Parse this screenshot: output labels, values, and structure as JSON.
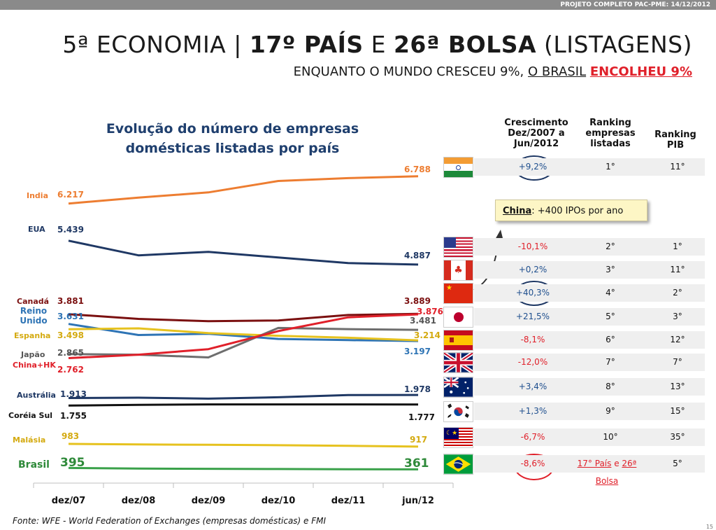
{
  "header": {
    "project": "PROJETO COMPLETO PAC-PME: 14/12/2012"
  },
  "title": {
    "part1": "5ª ECONOMIA | ",
    "part2": "17º PAÍS",
    "part3": " E ",
    "part4": "26ª BOLSA",
    "part5": " (LISTAGENS)"
  },
  "subtitle": {
    "part1": "ENQUANTO O MUNDO CRESCEU 9%, ",
    "part2": "O BRASIL",
    "part3": "ENCOLHEU 9%"
  },
  "chart_data": {
    "type": "line",
    "title": "Evolução do número de empresas domésticas listadas por país",
    "categories": [
      "dez/07",
      "dez/08",
      "dez/09",
      "dez/10",
      "dez/11",
      "jun/12"
    ],
    "series": [
      {
        "name": "India",
        "color": "#ed7d31",
        "values": [
          6217,
          6340,
          6450,
          6690,
          6750,
          6788
        ],
        "start_label": "6.217",
        "end_label": "6.788"
      },
      {
        "name": "EUA",
        "color": "#1f3864",
        "values": [
          5439,
          5100,
          5180,
          5050,
          4920,
          4887
        ],
        "start_label": "5.439",
        "end_label": "4.887"
      },
      {
        "name": "Canadá",
        "color": "#7b1010",
        "values": [
          3881,
          3760,
          3700,
          3720,
          3860,
          3889
        ],
        "start_label": "3.881",
        "end_label": "3.889"
      },
      {
        "name": "Reino Unido",
        "color": "#2e74b5",
        "values": [
          3631,
          3350,
          3380,
          3250,
          3220,
          3197
        ],
        "start_label": "3.631",
        "end_label": "3.197"
      },
      {
        "name": "Espanha",
        "color": "#e6c21f",
        "values": [
          3498,
          3520,
          3400,
          3330,
          3280,
          3214
        ],
        "start_label": "3.498",
        "end_label": "3.214"
      },
      {
        "name": "Japão",
        "color": "#6e6e6e",
        "values": [
          2865,
          2850,
          2780,
          3530,
          3500,
          3481
        ],
        "start_label": "2.865",
        "end_label": "3.481"
      },
      {
        "name": "China+HK",
        "color": "#e0202a",
        "values": [
          2762,
          2850,
          2990,
          3450,
          3800,
          3876
        ],
        "start_label": "2.762",
        "end_label": "3.876"
      },
      {
        "name": "Austrália",
        "color": "#1f3864",
        "values": [
          1913,
          1920,
          1900,
          1930,
          1975,
          1978
        ],
        "start_label": "1.913",
        "end_label": "1.978"
      },
      {
        "name": "Coréia Sul",
        "color": "#111111",
        "values": [
          1755,
          1770,
          1780,
          1780,
          1780,
          1777
        ],
        "start_label": "1.755",
        "end_label": "1.777"
      },
      {
        "name": "Malásia",
        "color": "#e6c21f",
        "values": [
          983,
          970,
          960,
          950,
          935,
          917
        ],
        "start_label": "983",
        "end_label": "917"
      },
      {
        "name": "Brasil",
        "color": "#3aa14a",
        "values": [
          395,
          380,
          375,
          370,
          365,
          361
        ],
        "start_label": "395",
        "end_label": "361"
      }
    ],
    "side_labels": {
      "India": "India",
      "EUA": "EUA",
      "Canadá": "Canadá",
      "Reino Unido": "Reino Unido",
      "Espanha": "Espanha",
      "Japão": "Japão",
      "China+HK": "China+HK",
      "Austrália": "Austrália",
      "Coréia Sul": "Coréia Sul",
      "Malásia": "Malásia",
      "Brasil": "Brasil"
    }
  },
  "table": {
    "headers": {
      "growth": "Crescimento Dez/2007 a Jun/2012",
      "ranking": "Ranking empresas listadas",
      "pib": "Ranking PIB"
    },
    "rows": [
      {
        "country": "India",
        "flag": "india",
        "growth": "+9,2%",
        "rank": "1°",
        "pib": "11°",
        "sign": "pos"
      },
      {
        "country": "EUA",
        "flag": "usa",
        "growth": "-10,1%",
        "rank": "2°",
        "pib": "1°",
        "sign": "neg"
      },
      {
        "country": "Canadá",
        "flag": "canada",
        "growth": "+0,2%",
        "rank": "3°",
        "pib": "11°",
        "sign": "pos"
      },
      {
        "country": "China",
        "flag": "china",
        "growth": "+40,3%",
        "rank": "4°",
        "pib": "2°",
        "sign": "pos"
      },
      {
        "country": "Japão",
        "flag": "japan",
        "growth": "+21,5%",
        "rank": "5°",
        "pib": "3°",
        "sign": "pos"
      },
      {
        "country": "Espanha",
        "flag": "spain",
        "growth": "-8,1%",
        "rank": "6°",
        "pib": "12°",
        "sign": "neg"
      },
      {
        "country": "Reino Unido",
        "flag": "uk",
        "growth": "-12,0%",
        "rank": "7°",
        "pib": "7°",
        "sign": "neg"
      },
      {
        "country": "Austrália",
        "flag": "australia",
        "growth": "+3,4%",
        "rank": "8°",
        "pib": "13°",
        "sign": "pos"
      },
      {
        "country": "Coréia Sul",
        "flag": "korea",
        "growth": "+1,3%",
        "rank": "9°",
        "pib": "15°",
        "sign": "pos"
      },
      {
        "country": "Malásia",
        "flag": "malaysia",
        "growth": "-6,7%",
        "rank": "10°",
        "pib": "35°",
        "sign": "neg"
      },
      {
        "country": "Brasil",
        "flag": "brazil",
        "growth": "-8,6%",
        "rank": "17° País e 26ª Bolsa",
        "pib": "5°",
        "sign": "neg"
      }
    ]
  },
  "callout": {
    "country": "China",
    "text": ": +400 IPOs por ano"
  },
  "source": "Fonte: WFE - World Federation of Exchanges (empresas domésticas) e FMI",
  "page_number": "15",
  "colors": {
    "accent_red": "#e0202a",
    "title_blue": "#1f3f6e",
    "positive_blue": "#1f4f8e"
  }
}
